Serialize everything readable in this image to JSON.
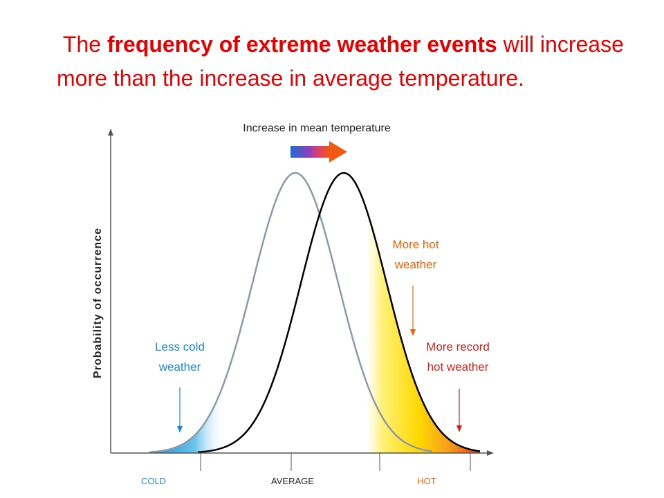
{
  "slide": {
    "text_part1": "The ",
    "text_bold": "frequency of extreme weather events",
    "text_part2": " will increase more than the increase in average temperature."
  },
  "diagram": {
    "arrow_label": "Increase in mean temperature",
    "y_axis_label": "Probability of occurrence",
    "x_tick_labels": {
      "cold": "COLD",
      "average": "AVERAGE",
      "hot": "HOT"
    },
    "annotations": {
      "less_cold_line1": "Less cold",
      "less_cold_line2": "weather",
      "more_hot_line1": "More hot",
      "more_hot_line2": "weather",
      "more_record_line1": "More record",
      "more_record_line2": "hot weather"
    },
    "colors": {
      "title": "#e60000",
      "cold": "#1a8ccf",
      "hot": "#e8630a",
      "record": "#d6201a",
      "old_curve": "#8a9aaa",
      "new_curve": "#000000"
    }
  }
}
